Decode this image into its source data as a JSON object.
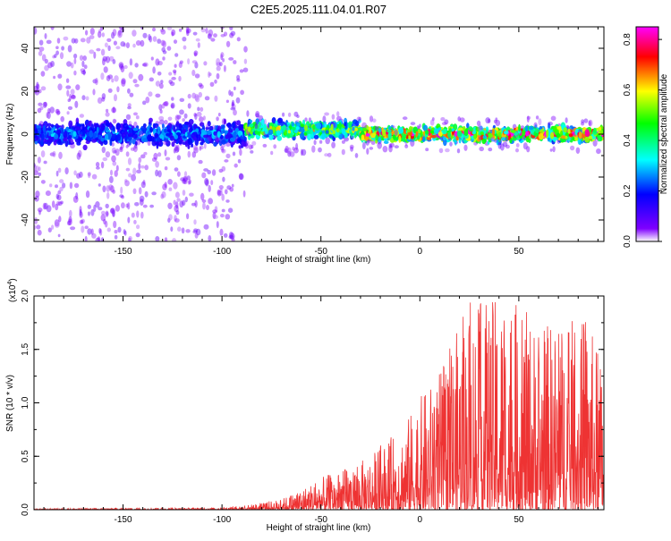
{
  "title": "C2E5.2025.111.04.01.R07",
  "chart_data": [
    {
      "type": "heatmap",
      "xlabel": "Height of straight line (km)",
      "ylabel": "Frequency (Hz)",
      "xlim": [
        -195,
        93
      ],
      "ylim": [
        -50,
        50
      ],
      "xticks": [
        -150,
        -100,
        -50,
        0,
        50
      ],
      "xtick_labels": [
        "-150",
        "-100",
        "-50",
        "0",
        "50"
      ],
      "yticks": [
        -40,
        -20,
        0,
        20,
        40
      ],
      "ytick_labels": [
        "-40",
        "-20",
        "0",
        "20",
        "40"
      ],
      "colorbar": {
        "label": "Normalized spectral amplitude",
        "range": [
          0,
          0.85
        ],
        "ticks": [
          0.0,
          0.2,
          0.4,
          0.6,
          0.8
        ],
        "tick_labels": [
          "0.0",
          "0.2",
          "0.4",
          "0.6",
          "0.8"
        ],
        "colors": [
          "#ffffff",
          "#7f00ff",
          "#0000ff",
          "#00ffff",
          "#00ff00",
          "#ffff00",
          "#ff0000",
          "#ff00ff"
        ]
      },
      "description_regions": [
        {
          "x": [
            -195,
            -88
          ],
          "freq_center": 0,
          "band_halfwidth": 8,
          "peak_amplitude": 0.25,
          "noise_spread": 50
        },
        {
          "x": [
            -88,
            -30
          ],
          "freq_center": 2,
          "band_halfwidth": 6,
          "peak_amplitude": 0.55,
          "noise_spread": 10
        },
        {
          "x": [
            -30,
            93
          ],
          "freq_center": 0,
          "band_halfwidth": 5,
          "peak_amplitude": 0.8,
          "noise_spread": 8
        }
      ],
      "grid": false
    },
    {
      "type": "line",
      "xlabel": "Height of straight line (km)",
      "ylabel": "SNR (10 * v/v)",
      "y_multiplier_label": "(x10",
      "y_multiplier_exp": "4",
      "xlim": [
        -195,
        93
      ],
      "ylim": [
        0,
        2.0
      ],
      "xticks": [
        -150,
        -100,
        -50,
        0,
        50
      ],
      "xtick_labels": [
        "-150",
        "-100",
        "-50",
        "0",
        "50"
      ],
      "yticks": [
        0.0,
        0.5,
        1.0,
        1.5,
        2.0
      ],
      "ytick_labels": [
        "0.0",
        "0.5",
        "1.0",
        "1.5",
        "2.0"
      ],
      "line_color": "#ee3333",
      "envelope": [
        {
          "x": -195,
          "y": 0.01
        },
        {
          "x": -100,
          "y": 0.02
        },
        {
          "x": -85,
          "y": 0.05
        },
        {
          "x": -70,
          "y": 0.1
        },
        {
          "x": -50,
          "y": 0.3
        },
        {
          "x": -30,
          "y": 0.45
        },
        {
          "x": -10,
          "y": 0.75
        },
        {
          "x": 0,
          "y": 1.05
        },
        {
          "x": 10,
          "y": 1.3
        },
        {
          "x": 25,
          "y": 1.95
        },
        {
          "x": 45,
          "y": 2.0
        },
        {
          "x": 60,
          "y": 1.75
        },
        {
          "x": 85,
          "y": 1.8
        },
        {
          "x": 93,
          "y": 1.3
        }
      ],
      "grid": false
    }
  ]
}
